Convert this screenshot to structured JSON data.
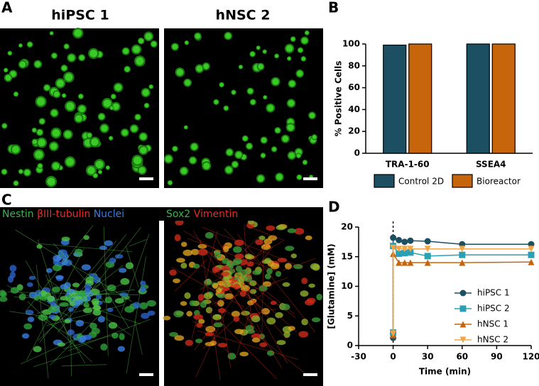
{
  "panels": {
    "a": {
      "label": "A",
      "titles": [
        "hiPSC 1",
        "hNSC 2"
      ]
    },
    "c": {
      "label": "C",
      "left": [
        "Nestin",
        "βIII-tubulin",
        "Nuclei"
      ],
      "right": [
        "Sox2",
        "Vimentin"
      ]
    },
    "b": {
      "label": "B"
    },
    "d": {
      "label": "D"
    }
  },
  "chart_data": [
    {
      "type": "bar",
      "ylabel": "% Positive Cells",
      "categories": [
        "TRA-1-60",
        "SSEA4"
      ],
      "series": [
        {
          "name": "Control 2D",
          "color": "#1b4f61",
          "values": [
            99,
            100
          ]
        },
        {
          "name": "Bioreactor",
          "color": "#c7650c",
          "values": [
            100,
            100
          ]
        }
      ],
      "ylim": [
        0,
        100
      ],
      "yticks": [
        0,
        20,
        40,
        60,
        80,
        100
      ]
    },
    {
      "type": "line",
      "xlabel": "Time (min)",
      "ylabel": "[Glutamine] (mM)",
      "x": [
        0,
        0,
        5,
        10,
        15,
        30,
        60,
        120
      ],
      "series": [
        {
          "name": "hiPSC 1",
          "color": "#1b4f61",
          "marker": "circle",
          "values": [
            1.3,
            18.2,
            17.8,
            17.5,
            17.7,
            17.6,
            17.1,
            17.1
          ]
        },
        {
          "name": "hiPSC 2",
          "color": "#2aa0b5",
          "marker": "square",
          "values": [
            2.2,
            16.8,
            15.5,
            15.6,
            15.7,
            15.1,
            15.3,
            15.3
          ]
        },
        {
          "name": "hNSC 1",
          "color": "#c7650c",
          "marker": "triangle",
          "values": [
            1.8,
            15.5,
            14.0,
            14.0,
            14.0,
            14.0,
            14.0,
            14.1
          ]
        },
        {
          "name": "hNSC 2",
          "color": "#f3a545",
          "marker": "triangle-down",
          "values": [
            2.0,
            16.5,
            16.3,
            16.3,
            16.3,
            16.3,
            16.3,
            16.3
          ]
        }
      ],
      "xlim": [
        -30,
        120
      ],
      "xticks": [
        -30,
        0,
        30,
        60,
        90,
        120
      ],
      "ylim": [
        0,
        20
      ],
      "yticks": [
        0,
        5,
        10,
        15,
        20
      ]
    }
  ]
}
